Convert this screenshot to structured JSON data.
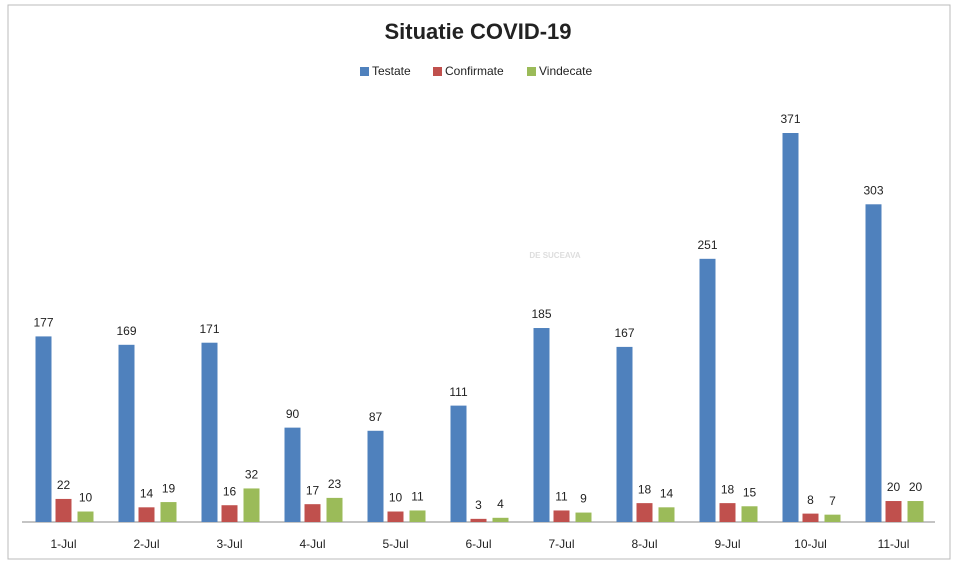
{
  "chart_data": {
    "type": "bar",
    "title": "Situatie COVID-19",
    "watermark": "DE SUCEAVA",
    "categories": [
      "1-Jul",
      "2-Jul",
      "3-Jul",
      "4-Jul",
      "5-Jul",
      "6-Jul",
      "7-Jul",
      "8-Jul",
      "9-Jul",
      "10-Jul",
      "11-Jul"
    ],
    "series": [
      {
        "name": "Testate",
        "color": "#4f81bd",
        "values": [
          177,
          169,
          171,
          90,
          87,
          111,
          185,
          167,
          251,
          371,
          303
        ]
      },
      {
        "name": "Confirmate",
        "color": "#c0504d",
        "values": [
          22,
          14,
          16,
          17,
          10,
          3,
          11,
          18,
          18,
          8,
          20
        ]
      },
      {
        "name": "Vindecate",
        "color": "#9bbb59",
        "values": [
          10,
          19,
          32,
          23,
          11,
          4,
          9,
          14,
          15,
          7,
          20
        ]
      }
    ],
    "legend": "top"
  }
}
